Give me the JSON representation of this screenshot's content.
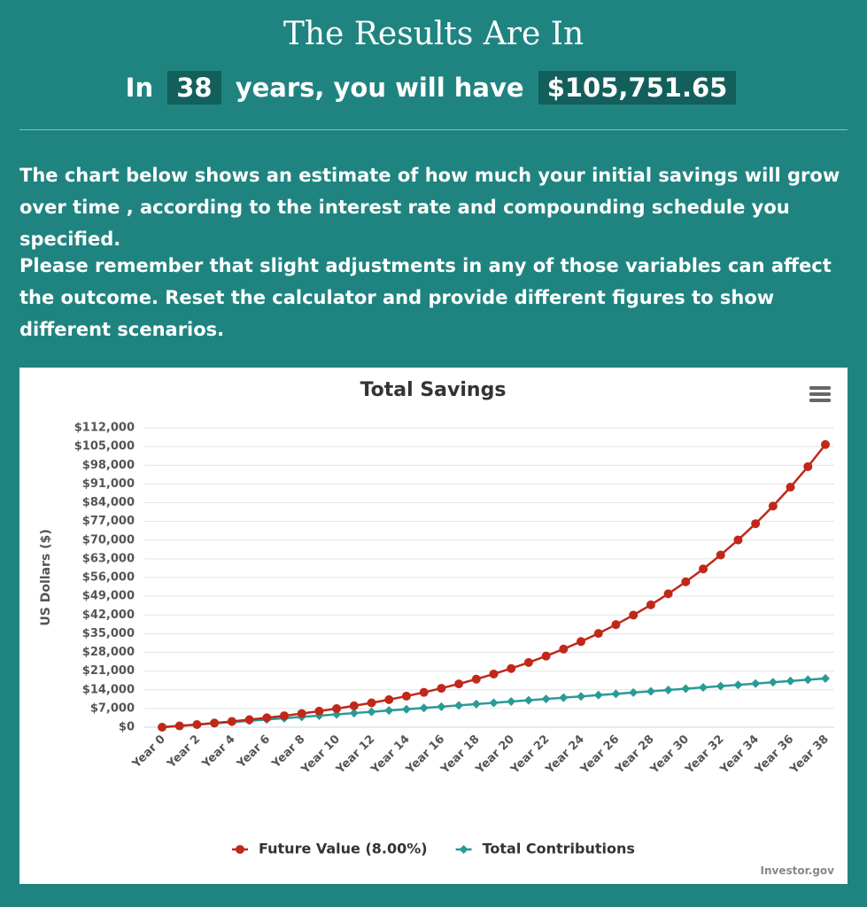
{
  "header": {
    "title": "The Results Are In",
    "lead": "In",
    "years": "38",
    "middle": "years, you will have",
    "amount": "$105,751.65"
  },
  "paragraphs": [
    "The chart below shows an estimate of how much your initial savings will grow over time , according to the interest rate and compounding schedule you specified.",
    "Please remember that slight adjustments in any of those variables can affect the outcome. Reset the calculator and provide different figures to show different scenarios."
  ],
  "chart_data": {
    "type": "line",
    "title": "Total Savings",
    "y_label": "US Dollars ($)",
    "credit": "Investor.gov",
    "grid": true,
    "categories": [
      "Year 0",
      null,
      "Year 2",
      null,
      "Year 4",
      null,
      "Year 6",
      null,
      "Year 8",
      null,
      "Year 10",
      null,
      "Year 12",
      null,
      "Year 14",
      null,
      "Year 16",
      null,
      "Year 18",
      null,
      "Year 20",
      null,
      "Year 22",
      null,
      "Year 24",
      null,
      "Year 26",
      null,
      "Year 28",
      null,
      "Year 30",
      null,
      "Year 32",
      null,
      "Year 34",
      null,
      "Year 36",
      null,
      "Year 38"
    ],
    "series": [
      {
        "name": "Future Value (8.00%)",
        "color": "#c1281a",
        "marker": "circle",
        "values": [
          0,
          480,
          998,
          1558,
          2163,
          2816,
          3521,
          4283,
          5106,
          5994,
          6954,
          7990,
          9109,
          10318,
          11623,
          13033,
          14556,
          16200,
          17976,
          19894,
          21966,
          24203,
          26619,
          29229,
          32047,
          35091,
          38378,
          41928,
          45763,
          49904,
          54376,
          59206,
          64423,
          70056,
          76141,
          82712,
          89809,
          97474,
          105752
        ]
      },
      {
        "name": "Total Contributions",
        "color": "#2a9a97",
        "marker": "diamond",
        "values": [
          0,
          480,
          960,
          1440,
          1920,
          2400,
          2880,
          3360,
          3840,
          4320,
          4800,
          5280,
          5760,
          6240,
          6720,
          7200,
          7680,
          8160,
          8640,
          9120,
          9600,
          10080,
          10560,
          11040,
          11520,
          12000,
          12480,
          12960,
          13440,
          13920,
          14400,
          14880,
          15360,
          15840,
          16320,
          16800,
          17280,
          17760,
          18240
        ]
      }
    ],
    "ylim": [
      0,
      112000
    ],
    "yticks": [
      {
        "value": 0,
        "label": "$0"
      },
      {
        "value": 7000,
        "label": "$7,000"
      },
      {
        "value": 14000,
        "label": "$14,000"
      },
      {
        "value": 21000,
        "label": "$21,000"
      },
      {
        "value": 28000,
        "label": "$28,000"
      },
      {
        "value": 35000,
        "label": "$35,000"
      },
      {
        "value": 42000,
        "label": "$42,000"
      },
      {
        "value": 49000,
        "label": "$49,000"
      },
      {
        "value": 56000,
        "label": "$56,000"
      },
      {
        "value": 63000,
        "label": "$63,000"
      },
      {
        "value": 70000,
        "label": "$70,000"
      },
      {
        "value": 77000,
        "label": "$77,000"
      },
      {
        "value": 84000,
        "label": "$84,000"
      },
      {
        "value": 91000,
        "label": "$91,000"
      },
      {
        "value": 98000,
        "label": "$98,000"
      },
      {
        "value": 105000,
        "label": "$105,000"
      },
      {
        "value": 112000,
        "label": "$112,000"
      }
    ]
  }
}
